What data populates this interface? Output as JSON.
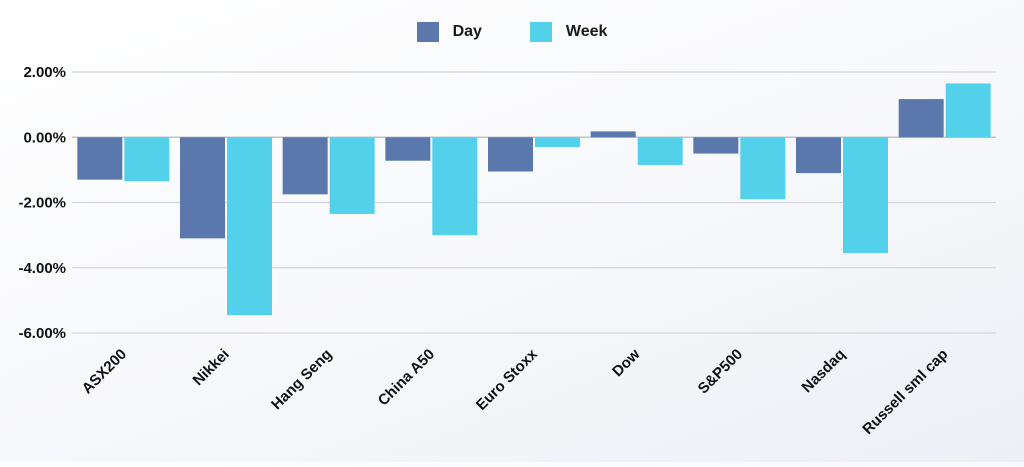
{
  "chart_data": {
    "type": "bar",
    "categories": [
      "ASX200",
      "Nikkei",
      "Hang Seng",
      "China A50",
      "Euro Stoxx",
      "Dow",
      "S&P500",
      "Nasdaq",
      "Russell sml cap"
    ],
    "series": [
      {
        "name": "Day",
        "color": "#5b78ad",
        "values": [
          -1.3,
          -3.1,
          -1.75,
          -0.72,
          -1.05,
          0.18,
          -0.5,
          -1.1,
          1.17
        ]
      },
      {
        "name": "Week",
        "color": "#54d1ea",
        "values": [
          -1.35,
          -5.45,
          -2.35,
          -3.0,
          -0.3,
          -0.85,
          -1.9,
          -3.55,
          1.65
        ]
      }
    ],
    "yticks": [
      "2.00%",
      "0.00%",
      "-2.00%",
      "-4.00%",
      "-6.00%"
    ],
    "ytick_values": [
      2,
      0,
      -2,
      -4,
      -6
    ],
    "ylim": [
      -6,
      2
    ],
    "grid": true,
    "legend_position": "top-center",
    "title": "",
    "xlabel": "",
    "ylabel": ""
  }
}
